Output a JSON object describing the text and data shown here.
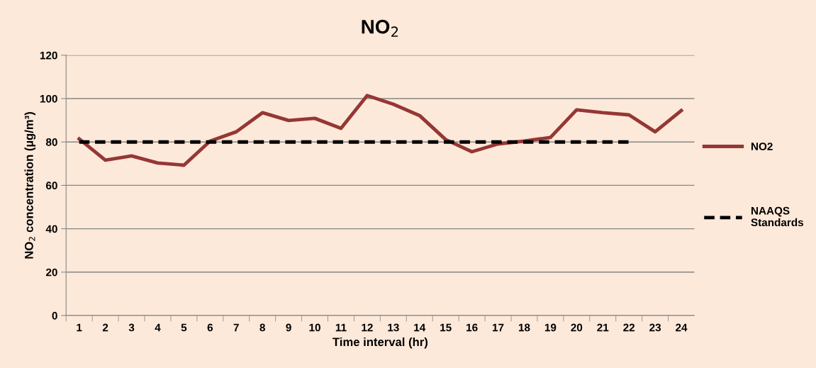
{
  "chart_data": {
    "type": "line",
    "title": "NO$_{2}$",
    "xlabel": "Time interval (hr)",
    "ylabel": "NO$_{2}$ concentration (µg/m³)",
    "categories": [
      "1",
      "2",
      "3",
      "4",
      "5",
      "6",
      "7",
      "8",
      "9",
      "10",
      "11",
      "12",
      "13",
      "14",
      "15",
      "16",
      "17",
      "18",
      "19",
      "20",
      "21",
      "22",
      "23",
      "24"
    ],
    "series": [
      {
        "name": "NO2",
        "color": "#953735",
        "line_style": "solid",
        "values": [
          81.4,
          71.6,
          73.6,
          70.3,
          69.3,
          80.4,
          84.7,
          93.5,
          89.9,
          90.9,
          86.3,
          101.4,
          97.4,
          92.2,
          81.1,
          75.5,
          79.1,
          80.4,
          82.1,
          94.8,
          93.5,
          92.5,
          84.7,
          94.5
        ]
      },
      {
        "name": "NAAQS Standards",
        "color": "#000000",
        "line_style": "dashed",
        "values": [
          80,
          80,
          80,
          80,
          80,
          80,
          80,
          80,
          80,
          80,
          80,
          80,
          80,
          80,
          80,
          80,
          80,
          80,
          80,
          80,
          80,
          80,
          null,
          null
        ]
      }
    ],
    "ylim": [
      0,
      120
    ],
    "yticks": [
      0,
      20,
      40,
      60,
      80,
      100,
      120
    ],
    "grid": "y",
    "legend": "right",
    "marker": "none"
  }
}
